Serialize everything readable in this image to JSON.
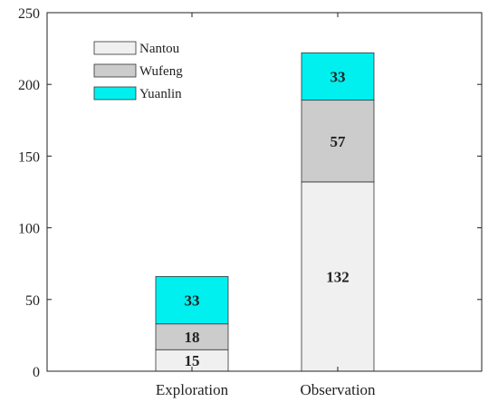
{
  "chart_data": {
    "type": "bar",
    "stacked": true,
    "categories": [
      "Exploration",
      "Observation"
    ],
    "series": [
      {
        "name": "Nantou",
        "values": [
          15,
          132
        ],
        "color": "#f0f0f0"
      },
      {
        "name": "Wufeng",
        "values": [
          18,
          57
        ],
        "color": "#cccccc"
      },
      {
        "name": "Yuanlin",
        "values": [
          33,
          33
        ],
        "color": "#00f0f0"
      }
    ],
    "ylim": [
      0,
      250
    ],
    "yticks": [
      0,
      50,
      100,
      150,
      200,
      250
    ],
    "data_labels": true,
    "legend_position": "top-left",
    "grid": false
  }
}
